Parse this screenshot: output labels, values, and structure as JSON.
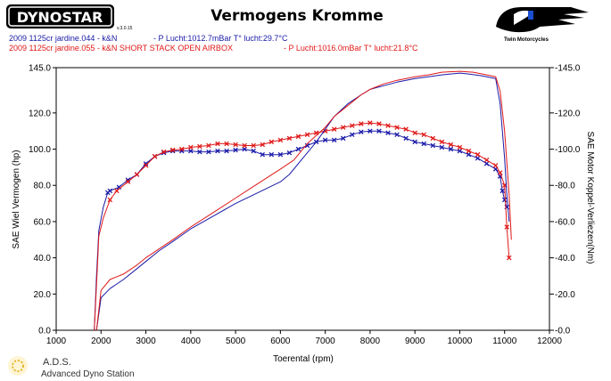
{
  "chart_data": {
    "type": "line",
    "title": "Vermogens Kromme",
    "xlabel": "Toerental (rpm)",
    "ylabel_left": "SAE Wiel Vermogen (hp)",
    "ylabel_right": "SAE Motor Koppel-Verliezen(Nm)",
    "xlim": [
      1000,
      12000
    ],
    "ylim_left": [
      0,
      145
    ],
    "ylim_right": [
      0,
      145
    ],
    "x_ticks": [
      "1000",
      "2000",
      "3000",
      "4000",
      "5000",
      "6000",
      "7000",
      "8000",
      "9000",
      "10000",
      "11000",
      "12000"
    ],
    "y_ticks_left": [
      "0.0",
      "20.0",
      "40.0",
      "60.0",
      "80.0",
      "100.0",
      "120.0",
      "145.0"
    ],
    "y_ticks_right": [
      "0.0",
      "20.0",
      "40.0",
      "60.0",
      "80.0",
      "100.0",
      "120.0",
      "145.0"
    ],
    "legend": [
      {
        "label": "2009 1125cr jardine.044 - k&N",
        "conditions": "- P Lucht:1012.7mBar T° lucht:29.7°C",
        "color": "#1a1aa8"
      },
      {
        "label": "2009 1125cr jardine.055 - k&N   SHORT STACK OPEN AIRBOX",
        "conditions": "- P Lucht:1016.0mBar T° lucht:21.8°C",
        "color": "#e01818"
      }
    ],
    "series": [
      {
        "name": "2009 1125cr jardine.044 - power (hp)",
        "axis": "left",
        "color": "#1a1aa8",
        "marker": "x",
        "x": [
          1850,
          1900,
          1950,
          2050,
          2150,
          2200,
          2400,
          2600,
          2800,
          3000,
          3200,
          3400,
          3600,
          3800,
          4000,
          4200,
          4400,
          4600,
          4800,
          5000,
          5200,
          5400,
          5600,
          5800,
          6000,
          6200,
          6400,
          6600,
          6800,
          7000,
          7200,
          7400,
          7600,
          7800,
          8000,
          8200,
          8400,
          8600,
          8800,
          9000,
          9200,
          9400,
          9600,
          9800,
          10000,
          10200,
          10400,
          10600,
          10800,
          10900,
          10950,
          11000,
          11050
        ],
        "y": [
          0,
          30,
          55,
          68,
          76,
          77,
          79,
          83,
          86,
          92,
          96,
          98,
          99,
          99,
          99,
          98.5,
          98.5,
          99,
          99,
          99.5,
          100,
          99,
          97,
          97,
          97,
          98,
          100,
          102,
          104,
          105,
          105,
          106,
          108,
          109.5,
          110,
          110,
          109,
          108,
          106,
          104,
          103,
          102,
          101,
          100,
          99,
          97,
          95,
          92,
          89,
          85,
          77,
          72,
          68
        ]
      },
      {
        "name": "2009 1125cr jardine.055 - power (hp)",
        "axis": "left",
        "color": "#e01818",
        "marker": "x",
        "x": [
          1850,
          1900,
          1950,
          2050,
          2200,
          2350,
          2600,
          2800,
          3000,
          3200,
          3400,
          3600,
          3800,
          4000,
          4200,
          4400,
          4600,
          4800,
          5000,
          5200,
          5400,
          5600,
          5800,
          6000,
          6200,
          6400,
          6600,
          6800,
          7000,
          7200,
          7400,
          7600,
          7800,
          8000,
          8200,
          8400,
          8600,
          8800,
          9000,
          9200,
          9400,
          9600,
          9800,
          10000,
          10200,
          10400,
          10600,
          10800,
          10900,
          11000,
          11050,
          11100
        ],
        "y": [
          0,
          25,
          52,
          62,
          72,
          77,
          82,
          86,
          91,
          96,
          98.5,
          99.5,
          100,
          101,
          101.5,
          102,
          103,
          103,
          102.5,
          102,
          102,
          102.5,
          104,
          105,
          106,
          107,
          108,
          109,
          110,
          111,
          112,
          113,
          114,
          114.5,
          114,
          113,
          112,
          111,
          109,
          108,
          106,
          104,
          102.5,
          101,
          99,
          97,
          94,
          91,
          87,
          80,
          57,
          40
        ]
      },
      {
        "name": "2009 1125cr jardine.044 - torque (Nm)",
        "axis": "right",
        "color": "#1a1aa8",
        "marker": "none",
        "x": [
          1900,
          2000,
          2200,
          2500,
          2800,
          3000,
          3300,
          3600,
          4000,
          4500,
          5000,
          5500,
          6000,
          6200,
          6500,
          6800,
          7000,
          7200,
          7500,
          7800,
          8000,
          8300,
          8600,
          9000,
          9300,
          9600,
          10000,
          10200,
          10500,
          10800,
          10900,
          11000,
          11050,
          11100
        ],
        "y": [
          0,
          18,
          23,
          28,
          34,
          38,
          44,
          49,
          56,
          63,
          70,
          76,
          82,
          86,
          95,
          104,
          111,
          118,
          125,
          130,
          133,
          135,
          137,
          139,
          140,
          141,
          142,
          141.5,
          140.5,
          139,
          125,
          95,
          75,
          60
        ]
      },
      {
        "name": "2009 1125cr jardine.055 - torque (Nm)",
        "axis": "right",
        "color": "#e01818",
        "marker": "none",
        "x": [
          1900,
          2000,
          2200,
          2500,
          2800,
          3000,
          3300,
          3600,
          4000,
          4500,
          5000,
          5500,
          6000,
          6300,
          6600,
          7000,
          7200,
          7500,
          7800,
          8000,
          8300,
          8600,
          9000,
          9300,
          9600,
          10000,
          10300,
          10600,
          10800,
          10900,
          11000,
          11100,
          11150
        ],
        "y": [
          0,
          22,
          28,
          31,
          36,
          40,
          45,
          50,
          57,
          65,
          73,
          81,
          89,
          94,
          103,
          112,
          118,
          124,
          130,
          133,
          136,
          138,
          140,
          141,
          142.5,
          143,
          142.5,
          141,
          140,
          132,
          110,
          75,
          50
        ]
      }
    ]
  },
  "header": {
    "brand_logo_text": "DYNOSTAR",
    "brand_logo_sub": "v.3.0.15",
    "right_logo_text": "Twin Motorcycles"
  },
  "footer": {
    "ads_title": "A.D.S.",
    "ads_subtitle": "Advanced Dyno Station"
  },
  "colors": {
    "series_blue": "#1a1aa8",
    "series_red": "#e01818",
    "frame": "#000000",
    "background": "#ffffff"
  }
}
